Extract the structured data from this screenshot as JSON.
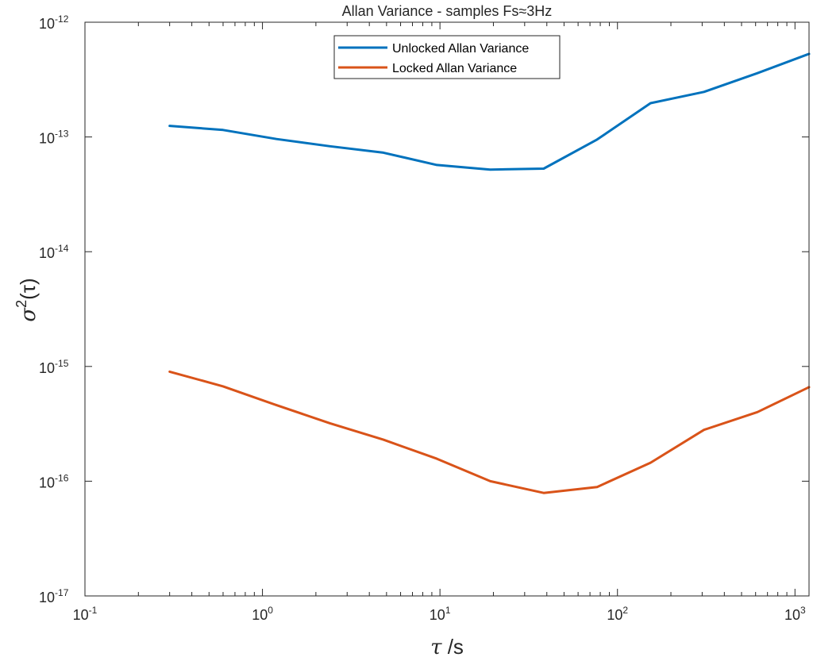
{
  "chart_data": {
    "type": "line",
    "title": "Allan Variance - samples Fs≈3Hz",
    "xlabel": {
      "symbol": "τ",
      "unit": " /s"
    },
    "ylabel": {
      "symbol": "σ",
      "power": "2",
      "arg": "(τ)"
    },
    "xscale": "log",
    "yscale": "log",
    "xlim": [
      0.1,
      1200
    ],
    "ylim": [
      1e-17,
      1e-12
    ],
    "x_ticks": [
      {
        "base": "10",
        "exp": "-1",
        "value": 0.1
      },
      {
        "base": "10",
        "exp": "0",
        "value": 1
      },
      {
        "base": "10",
        "exp": "1",
        "value": 10
      },
      {
        "base": "10",
        "exp": "2",
        "value": 100
      },
      {
        "base": "10",
        "exp": "3",
        "value": 1000
      }
    ],
    "y_ticks": [
      {
        "base": "10",
        "exp": "-12",
        "value": 1e-12
      },
      {
        "base": "10",
        "exp": "-13",
        "value": 1e-13
      },
      {
        "base": "10",
        "exp": "-14",
        "value": 1e-14
      },
      {
        "base": "10",
        "exp": "-15",
        "value": 1e-15
      },
      {
        "base": "10",
        "exp": "-16",
        "value": 1e-16
      },
      {
        "base": "10",
        "exp": "-17",
        "value": 1e-17
      }
    ],
    "grid": false,
    "legend_position": "top-center",
    "series": [
      {
        "name": "Unlocked Allan Variance",
        "color": "#0072BD",
        "x": [
          0.3,
          0.6,
          1.2,
          2.4,
          4.8,
          9.6,
          19.2,
          38.4,
          76.8,
          153.6,
          307.2,
          614.4,
          1200
        ],
        "y": [
          1.25e-13,
          1.15e-13,
          9.6e-14,
          8.3e-14,
          7.3e-14,
          5.7e-14,
          5.2e-14,
          5.3e-14,
          9.5e-14,
          1.97e-13,
          2.47e-13,
          3.6e-13,
          5.3e-13
        ]
      },
      {
        "name": "Locked Allan Variance",
        "color": "#D95319",
        "x": [
          0.3,
          0.6,
          1.2,
          2.4,
          4.8,
          9.6,
          19.2,
          38.4,
          76.8,
          153.6,
          307.2,
          614.4,
          1200
        ],
        "y": [
          9e-16,
          6.7e-16,
          4.6e-16,
          3.2e-16,
          2.3e-16,
          1.57e-16,
          1e-16,
          7.9e-17,
          8.9e-17,
          1.45e-16,
          2.8e-16,
          4e-16,
          6.6e-16
        ]
      }
    ]
  }
}
